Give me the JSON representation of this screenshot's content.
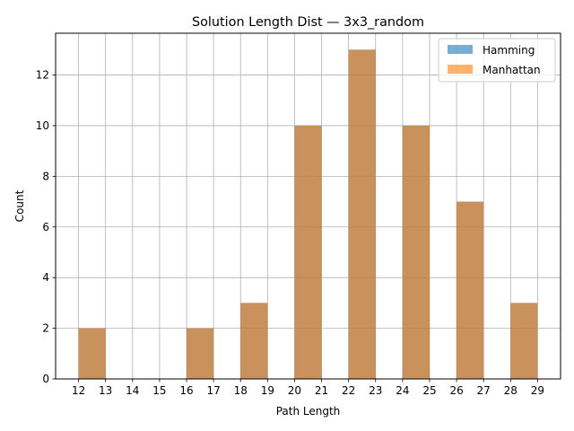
{
  "chart_data": {
    "type": "bar",
    "title": "Solution Length Dist — 3x3_random",
    "xlabel": "Path Length",
    "ylabel": "Count",
    "x_ticks": [
      12,
      13,
      14,
      15,
      16,
      17,
      18,
      19,
      20,
      21,
      22,
      23,
      24,
      25,
      26,
      27,
      28,
      29
    ],
    "y_ticks": [
      0,
      2,
      4,
      6,
      8,
      10,
      12
    ],
    "xlim": [
      11.15,
      29.85
    ],
    "ylim": [
      0,
      13.65
    ],
    "grid": true,
    "legend_position": "top-right",
    "bins": [
      {
        "start": 12,
        "end": 13
      },
      {
        "start": 14,
        "end": 15
      },
      {
        "start": 16,
        "end": 17
      },
      {
        "start": 18,
        "end": 19
      },
      {
        "start": 20,
        "end": 21
      },
      {
        "start": 22,
        "end": 23
      },
      {
        "start": 24,
        "end": 25
      },
      {
        "start": 26,
        "end": 27
      },
      {
        "start": 28,
        "end": 29
      }
    ],
    "series": [
      {
        "name": "Hamming",
        "color": "#1f77b4",
        "opacity": 0.6,
        "values": [
          2,
          0,
          2,
          3,
          10,
          13,
          10,
          7,
          3
        ]
      },
      {
        "name": "Manhattan",
        "color": "#ff7f0e",
        "opacity": 0.6,
        "values": [
          2,
          0,
          2,
          3,
          10,
          13,
          10,
          7,
          3
        ]
      }
    ]
  }
}
